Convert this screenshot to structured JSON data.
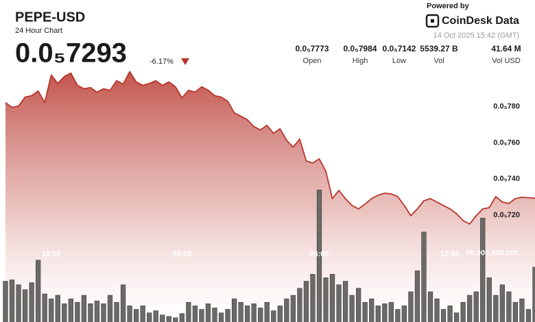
{
  "chart_data": {
    "type": "line",
    "title": "PEPE-USD",
    "subtitle": "24 Hour Chart",
    "price": "0.0₅7293",
    "change": "-6.17%",
    "powered_by": "Powered by",
    "brand": "CoinDesk Data",
    "timestamp": "14 Oct 2025 15:42 (GMT)",
    "stats": [
      {
        "value": "0.0₅7773",
        "label": "Open"
      },
      {
        "value": "0.0₅7984",
        "label": "High"
      },
      {
        "value": "0.0₅7142",
        "label": "Low"
      },
      {
        "value": "5539.27 B",
        "label": "Vol"
      },
      {
        "value": "41.64 M",
        "label": "Vol USD"
      }
    ],
    "categories": [
      null,
      null,
      null,
      null,
      null,
      null,
      null,
      "18:00",
      null,
      null,
      null,
      null,
      null,
      null,
      null,
      null,
      null,
      null,
      null,
      null,
      null,
      null,
      null,
      null,
      null,
      null,
      null,
      "00:00",
      null,
      null,
      null,
      null,
      null,
      null,
      null,
      null,
      null,
      null,
      null,
      null,
      null,
      null,
      null,
      null,
      null,
      null,
      null,
      null,
      "06:00",
      null,
      null,
      null,
      null,
      null,
      null,
      null,
      null,
      null,
      null,
      null,
      null,
      null,
      null,
      null,
      null,
      null,
      null,
      null,
      "12:00",
      null,
      null,
      null,
      null,
      null,
      null,
      null,
      null,
      null,
      null,
      null,
      null,
      null
    ],
    "series": [
      {
        "name": "Price",
        "color": "#b8352c",
        "type": "line",
        "values": [
          7.823e-06,
          7.796e-06,
          7.804e-06,
          7.853e-06,
          7.861e-06,
          7.887e-06,
          7.823e-06,
          7.975e-06,
          7.929e-06,
          7.967e-06,
          7.986e-06,
          7.918e-06,
          7.899e-06,
          7.906e-06,
          7.88e-06,
          7.899e-06,
          7.891e-06,
          7.944e-06,
          7.925e-06,
          7.994e-06,
          7.937e-06,
          7.918e-06,
          7.929e-06,
          7.944e-06,
          7.918e-06,
          7.937e-06,
          7.91e-06,
          7.849e-06,
          7.891e-06,
          7.88e-06,
          7.91e-06,
          7.891e-06,
          7.861e-06,
          7.853e-06,
          7.83e-06,
          7.766e-06,
          7.747e-06,
          7.728e-06,
          7.69e-06,
          7.671e-06,
          7.697e-06,
          7.652e-06,
          7.678e-06,
          7.614e-06,
          7.576e-06,
          7.621e-06,
          7.5e-06,
          7.488e-06,
          7.511e-06,
          7.443e-06,
          7.291e-06,
          7.336e-06,
          7.291e-06,
          7.253e-06,
          7.234e-06,
          7.26e-06,
          7.291e-06,
          7.31e-06,
          7.321e-06,
          7.317e-06,
          7.302e-06,
          7.253e-06,
          7.196e-06,
          7.234e-06,
          7.279e-06,
          7.291e-06,
          7.272e-06,
          7.253e-06,
          7.234e-06,
          7.207e-06,
          7.169e-06,
          7.15e-06,
          7.196e-06,
          7.234e-06,
          7.241e-06,
          7.302e-06,
          7.272e-06,
          7.264e-06,
          7.291e-06,
          7.298e-06,
          7.296e-06,
          7.293e-06
        ]
      },
      {
        "name": "Volume",
        "color": "#6b6a66",
        "type": "bar",
        "axis": "y2",
        "values": [
          60000000000,
          62000000000,
          55000000000,
          48000000000,
          58000000000,
          90000000000,
          42000000000,
          35000000000,
          40000000000,
          28000000000,
          35000000000,
          30000000000,
          40000000000,
          28000000000,
          32000000000,
          28000000000,
          40000000000,
          30000000000,
          55000000000,
          25000000000,
          20000000000,
          25000000000,
          15000000000,
          18000000000,
          12000000000,
          10000000000,
          8000000000,
          14000000000,
          30000000000,
          25000000000,
          20000000000,
          28000000000,
          22000000000,
          15000000000,
          20000000000,
          35000000000,
          30000000000,
          25000000000,
          28000000000,
          22000000000,
          30000000000,
          18000000000,
          25000000000,
          35000000000,
          40000000000,
          50000000000,
          60000000000,
          70000000000,
          190000000000,
          65000000000,
          70000000000,
          55000000000,
          60000000000,
          40000000000,
          50000000000,
          30000000000,
          35000000000,
          25000000000,
          28000000000,
          30000000000,
          20000000000,
          25000000000,
          45000000000,
          75000000000,
          130000000000,
          45000000000,
          35000000000,
          20000000000,
          25000000000,
          15000000000,
          30000000000,
          40000000000,
          45000000000,
          150000000000,
          65000000000,
          40000000000,
          55000000000,
          45000000000,
          30000000000,
          35000000000,
          20000000000,
          80000000000
        ]
      }
    ],
    "ylim": [
      6.6e-06,
      8e-06
    ],
    "yticks": [
      {
        "value": 7.2e-06,
        "label": "0.0₅720"
      },
      {
        "value": 7.4e-06,
        "label": "0.0₅740"
      },
      {
        "value": 7.6e-06,
        "label": "0.0₅760"
      },
      {
        "value": 7.8e-06,
        "label": "0.0₅780"
      }
    ],
    "y2lim": [
      0,
      360000000000
    ],
    "y2ticks": [
      {
        "value": 100000000000,
        "label": "00,000,000,000"
      }
    ],
    "grid": false
  }
}
